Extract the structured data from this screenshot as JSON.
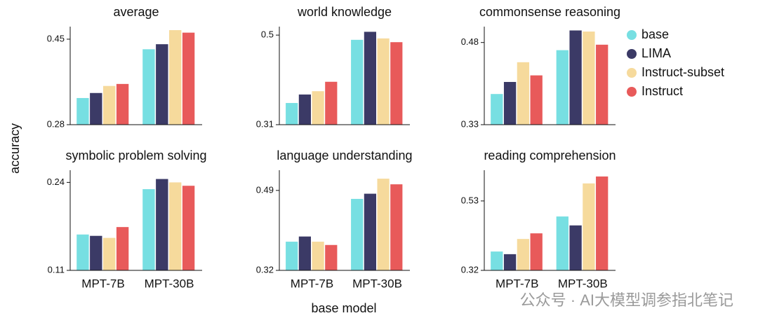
{
  "chart_data": [
    {
      "type": "bar",
      "title": "average",
      "categories": [
        "MPT-7B",
        "MPT-30B"
      ],
      "ylim": [
        0.28,
        0.475
      ],
      "yticks": [
        0.28,
        0.45
      ],
      "series": [
        {
          "name": "base",
          "color": "#77dfe2",
          "values": [
            0.333,
            0.43
          ]
        },
        {
          "name": "LIMA",
          "color": "#3b3a66",
          "values": [
            0.343,
            0.44
          ]
        },
        {
          "name": "Instruct-subset",
          "color": "#f6da9c",
          "values": [
            0.357,
            0.468
          ]
        },
        {
          "name": "Instruct",
          "color": "#e85a5a",
          "values": [
            0.361,
            0.463
          ]
        }
      ]
    },
    {
      "type": "bar",
      "title": "world knowledge",
      "categories": [
        "MPT-7B",
        "MPT-30B"
      ],
      "ylim": [
        0.31,
        0.518
      ],
      "yticks": [
        0.31,
        0.5
      ],
      "series": [
        {
          "name": "base",
          "color": "#77dfe2",
          "values": [
            0.356,
            0.49
          ]
        },
        {
          "name": "LIMA",
          "color": "#3b3a66",
          "values": [
            0.374,
            0.507
          ]
        },
        {
          "name": "Instruct-subset",
          "color": "#f6da9c",
          "values": [
            0.381,
            0.493
          ]
        },
        {
          "name": "Instruct",
          "color": "#e85a5a",
          "values": [
            0.401,
            0.485
          ]
        }
      ]
    },
    {
      "type": "bar",
      "title": "commonsense reasoning",
      "categories": [
        "MPT-7B",
        "MPT-30B"
      ],
      "ylim": [
        0.33,
        0.509
      ],
      "yticks": [
        0.33,
        0.48
      ],
      "series": [
        {
          "name": "base",
          "color": "#77dfe2",
          "values": [
            0.386,
            0.466
          ]
        },
        {
          "name": "LIMA",
          "color": "#3b3a66",
          "values": [
            0.408,
            0.502
          ]
        },
        {
          "name": "Instruct-subset",
          "color": "#f6da9c",
          "values": [
            0.444,
            0.5
          ]
        },
        {
          "name": "Instruct",
          "color": "#e85a5a",
          "values": [
            0.42,
            0.476
          ]
        }
      ]
    },
    {
      "type": "bar",
      "title": "symbolic problem solving",
      "categories": [
        "MPT-7B",
        "MPT-30B"
      ],
      "ylim": [
        0.11,
        0.258
      ],
      "yticks": [
        0.11,
        0.24
      ],
      "series": [
        {
          "name": "base",
          "color": "#77dfe2",
          "values": [
            0.163,
            0.23
          ]
        },
        {
          "name": "LIMA",
          "color": "#3b3a66",
          "values": [
            0.161,
            0.245
          ]
        },
        {
          "name": "Instruct-subset",
          "color": "#f6da9c",
          "values": [
            0.158,
            0.24
          ]
        },
        {
          "name": "Instruct",
          "color": "#e85a5a",
          "values": [
            0.174,
            0.235
          ]
        }
      ]
    },
    {
      "type": "bar",
      "title": "language understanding",
      "categories": [
        "MPT-7B",
        "MPT-30B"
      ],
      "ylim": [
        0.32,
        0.533
      ],
      "yticks": [
        0.32,
        0.49
      ],
      "series": [
        {
          "name": "base",
          "color": "#77dfe2",
          "values": [
            0.381,
            0.472
          ]
        },
        {
          "name": "LIMA",
          "color": "#3b3a66",
          "values": [
            0.392,
            0.483
          ]
        },
        {
          "name": "Instruct-subset",
          "color": "#f6da9c",
          "values": [
            0.381,
            0.515
          ]
        },
        {
          "name": "Instruct",
          "color": "#e85a5a",
          "values": [
            0.374,
            0.503
          ]
        }
      ]
    },
    {
      "type": "bar",
      "title": "reading comprehension",
      "categories": [
        "MPT-7B",
        "MPT-30B"
      ],
      "ylim": [
        0.32,
        0.623
      ],
      "yticks": [
        0.32,
        0.53
      ],
      "series": [
        {
          "name": "base",
          "color": "#77dfe2",
          "values": [
            0.377,
            0.483
          ]
        },
        {
          "name": "LIMA",
          "color": "#3b3a66",
          "values": [
            0.369,
            0.456
          ]
        },
        {
          "name": "Instruct-subset",
          "color": "#f6da9c",
          "values": [
            0.415,
            0.583
          ]
        },
        {
          "name": "Instruct",
          "color": "#e85a5a",
          "values": [
            0.432,
            0.604
          ]
        }
      ]
    }
  ],
  "ylabel": "accuracy",
  "xlabel": "base model",
  "watermark": "公众号 · AI大模型调参指北笔记"
}
